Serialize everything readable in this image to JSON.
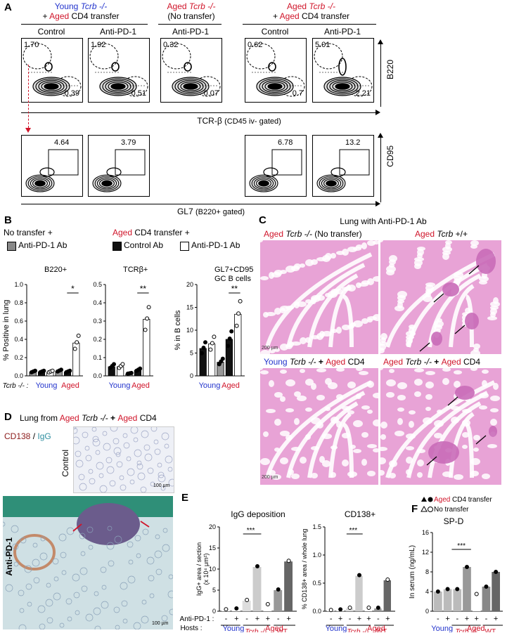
{
  "panelA": {
    "label": "A",
    "groups": [
      {
        "line1": "Young",
        "line1b": "Tcrb -/-",
        "line2a": "+ ",
        "line2b": "Aged",
        "line2c": " CD4 transfer"
      },
      {
        "line1": "Aged",
        "line1b": "Tcrb -/-",
        "line2a": "(No transfer)",
        "line2b": "",
        "line2c": ""
      },
      {
        "line1": "Aged",
        "line1b": "Tcrb -/-",
        "line2a": "+ ",
        "line2b": "Aged",
        "line2c": " CD4 transfer"
      }
    ],
    "col_labels": [
      "Control",
      "Anti-PD-1",
      "Anti-PD-1",
      "Control",
      "Anti-PD-1"
    ],
    "top_upper": [
      "1.70",
      "1.92",
      "0.32",
      "0.62",
      "5.01"
    ],
    "top_lower": [
      "0.39",
      "0.51",
      "0.07",
      "0.7",
      "2.21"
    ],
    "y_top": "B220",
    "x_top": "TCR-β",
    "x_top_sub": "(CD45 iv- gated)",
    "bottom_values": [
      "4.64",
      "3.79",
      "6.78",
      "13.2"
    ],
    "y_bottom": "CD95",
    "x_bottom": "GL7",
    "x_bottom_sub": "(B220+ gated)"
  },
  "panelB": {
    "label": "B",
    "legend": {
      "no_transfer": "No transfer +",
      "aged": "Aged",
      "cd4_transfer": " CD4 transfer +",
      "item1": "Anti-PD-1 Ab",
      "item2": "Control Ab",
      "item3": "Anti-PD-1 Ab"
    },
    "ylabel1": "% Positive in lung",
    "ylabel2": "% in B cells",
    "xrow": "Tcrb -/- :",
    "young": "Young",
    "aged": "Aged",
    "charts": [
      {
        "title": "B220+",
        "sig": "*",
        "ymax": 1,
        "ticks": [
          "0.0",
          "0.2",
          "0.4",
          "0.6",
          "0.8",
          "1.0"
        ]
      },
      {
        "title": "TCRβ+",
        "sig": "**",
        "ymax": 0.5,
        "ticks": [
          "0.0",
          "0.1",
          "0.2",
          "0.3",
          "0.4",
          "0.5"
        ]
      },
      {
        "title": "GL7+CD95+",
        "title2": "GC B cells",
        "sig": "**",
        "ymax": 20,
        "ticks": [
          "0",
          "5",
          "10",
          "15",
          "20"
        ]
      }
    ]
  },
  "chart_data": [
    {
      "type": "bar",
      "title": "B220+",
      "ylabel": "% Positive in lung",
      "ylim": [
        0,
        1
      ],
      "categories": [
        "Young No transfer Anti-PD-1",
        "Young CD4 Control",
        "Young CD4 Anti-PD-1",
        "Aged No transfer Anti-PD-1",
        "Aged CD4 Control",
        "Aged CD4 Anti-PD-1"
      ],
      "values": [
        0.04,
        0.04,
        0.04,
        0.05,
        0.04,
        0.36
      ]
    },
    {
      "type": "bar",
      "title": "TCRβ+",
      "ylabel": "% Positive in lung",
      "ylim": [
        0,
        0.5
      ],
      "categories": [
        "Young CD4 Control",
        "Young CD4 Anti-PD-1",
        "Aged No transfer Anti-PD-1",
        "Aged CD4 Control",
        "Aged CD4 Anti-PD-1"
      ],
      "values": [
        0.05,
        0.05,
        0.01,
        0.03,
        0.31
      ]
    },
    {
      "type": "bar",
      "title": "GL7+CD95+ GC B cells",
      "ylabel": "% in B cells",
      "ylim": [
        0,
        20
      ],
      "categories": [
        "Young CD4 Control",
        "Young CD4 Anti-PD-1",
        "Aged No transfer Anti-PD-1",
        "Aged CD4 Control",
        "Aged CD4 Anti-PD-1"
      ],
      "values": [
        6,
        7,
        3,
        8,
        13.5
      ]
    },
    {
      "type": "bar",
      "title": "IgG deposition",
      "ylabel": "IgG+ area / section (x 10⁴ μm²)",
      "ylim": [
        0,
        20
      ],
      "categories": [
        "Young -",
        "Young +",
        "Tcrb-/- Aged CD4 -",
        "Tcrb-/- Aged CD4 +",
        "Tcrb-/- No transfer +",
        "WT -",
        "WT +"
      ],
      "values": [
        0.3,
        0.5,
        2.5,
        10.5,
        1.5,
        5,
        11.8
      ]
    },
    {
      "type": "bar",
      "title": "CD138+",
      "ylabel": "% CD138+ area / whole lung",
      "ylim": [
        0,
        1.5
      ],
      "categories": [
        "Young -",
        "Young +",
        "Tcrb-/- Aged CD4 -",
        "Tcrb-/- Aged CD4 +",
        "Tcrb-/- No transfer +",
        "WT -",
        "WT +"
      ],
      "values": [
        0.01,
        0.02,
        0.05,
        0.63,
        0.05,
        0.05,
        0.55
      ]
    },
    {
      "type": "bar",
      "title": "SP-D",
      "ylabel": "In serum (ng/mL)",
      "ylim": [
        0,
        16
      ],
      "categories": [
        "Young -",
        "Young +",
        "Tcrb-/- Aged CD4 -",
        "Tcrb-/- Aged CD4 +",
        "Tcrb-/- No transfer +",
        "WT -",
        "WT +"
      ],
      "values": [
        4,
        4.5,
        4.5,
        9,
        3.5,
        5,
        8
      ]
    }
  ],
  "panelC": {
    "label": "C",
    "title": "Lung with Anti-PD-1 Ab",
    "t1a": "Aged",
    "t1b": "Tcrb -/-",
    "t1c": " (No transfer)",
    "t2a": "Aged",
    "t2b": "Tcrb",
    "t2c": " +/+",
    "t3a": "Young",
    "t3b": "Tcrb -/-",
    "t3c": " + ",
    "t3d": "Aged",
    "t3e": " CD4",
    "t4a": "Aged",
    "t4b": "Tcrb -/-",
    "t4c": " + ",
    "t4d": "Aged",
    "t4e": " CD4",
    "scale": "200 µm"
  },
  "panelD": {
    "label": "D",
    "title_a": "Lung from ",
    "title_b": "Aged",
    "title_c": "Tcrb -/-",
    "title_d": " + ",
    "title_e": "Aged",
    "title_f": " CD4",
    "stain_a": "CD138",
    "stain_b": " / ",
    "stain_c": "IgG",
    "control": "Control",
    "antipd1": "Anti-PD-1",
    "scale": "100 µm"
  },
  "panelE": {
    "label": "E",
    "title1": "IgG deposition",
    "title2": "CD138+",
    "ylabel1": "IgG+ area / section",
    "ylabel1b": "(x 10⁴ μm²)",
    "ylabel2": "% CD138+ area / whole lung",
    "antipd1": "Anti-PD-1 :",
    "hosts": "Hosts :",
    "young": "Young",
    "aged": "Aged",
    "tcrb": "Tcrb -/-",
    "wt": "WT",
    "ticks1": [
      "0",
      "5",
      "10",
      "15",
      "20"
    ],
    "ticks2": [
      "0.0",
      "0.5",
      "1.0",
      "1.5"
    ],
    "signs": [
      "-",
      "+",
      "-",
      "+",
      "+",
      "-",
      "+"
    ]
  },
  "panelF": {
    "label": "F",
    "legend1a": "Aged",
    "legend1b": " CD4 transfer",
    "legend2": "No transfer",
    "title": "SP-D",
    "ylabel": "In serum (ng/mL)",
    "ticks": [
      "0",
      "4",
      "8",
      "12",
      "16"
    ]
  }
}
